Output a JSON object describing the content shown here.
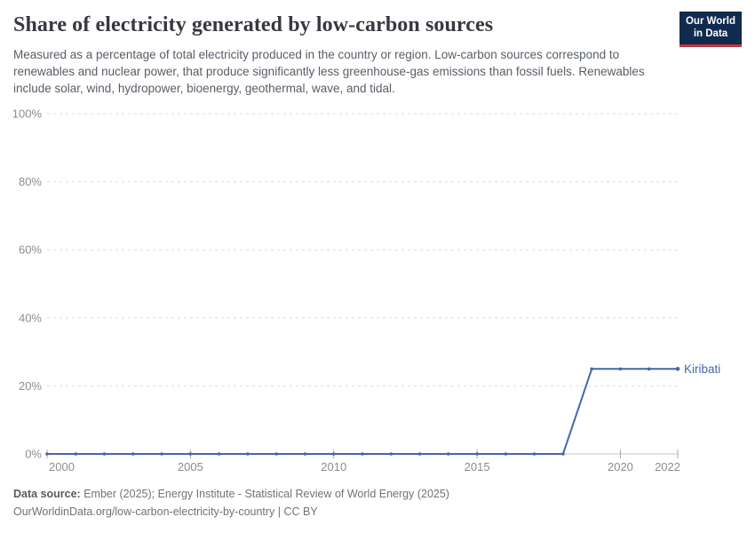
{
  "header": {
    "title": "Share of electricity generated by low-carbon sources",
    "subtitle": "Measured as a percentage of total electricity produced in the country or region. Low-carbon sources correspond to renewables and nuclear power, that produce significantly less greenhouse-gas emissions than fossil fuels. Renewables include solar, wind, hydropower, bioenergy, geothermal, wave, and tidal.",
    "logo": {
      "line1": "Our World",
      "line2": "in Data"
    }
  },
  "chart_data": {
    "type": "line",
    "x": [
      2000,
      2001,
      2002,
      2003,
      2004,
      2005,
      2006,
      2007,
      2008,
      2009,
      2010,
      2011,
      2012,
      2013,
      2014,
      2015,
      2016,
      2017,
      2018,
      2019,
      2020,
      2021,
      2022
    ],
    "series": [
      {
        "name": "Kiribati",
        "color": "#4467a7",
        "values": [
          0,
          0,
          0,
          0,
          0,
          0,
          0,
          0,
          0,
          0,
          0,
          0,
          0,
          0,
          0,
          0,
          0,
          0,
          0,
          25,
          25,
          25,
          25
        ]
      }
    ],
    "title": "Share of electricity generated by low-carbon sources",
    "xlabel": "",
    "ylabel": "",
    "xlim": [
      2000,
      2022
    ],
    "ylim": [
      0,
      100
    ],
    "x_ticks": [
      2000,
      2005,
      2010,
      2015,
      2020,
      2022
    ],
    "y_ticks": [
      0,
      20,
      40,
      60,
      80,
      100
    ],
    "y_tick_suffix": "%",
    "grid": "horizontal-dashed",
    "legend_position": "end-of-line-label"
  },
  "chart_colors": {
    "grid": "#d9d9d9",
    "axis_line": "#c6c6c6",
    "tick_mark": "#a8a8a8",
    "tick_label": "#898d92"
  },
  "footer": {
    "data_source_label": "Data source:",
    "data_source_text": " Ember (2025); Energy Institute - Statistical Review of World Energy (2025)",
    "url_line": "OurWorldinData.org/low-carbon-electricity-by-country | CC BY"
  }
}
